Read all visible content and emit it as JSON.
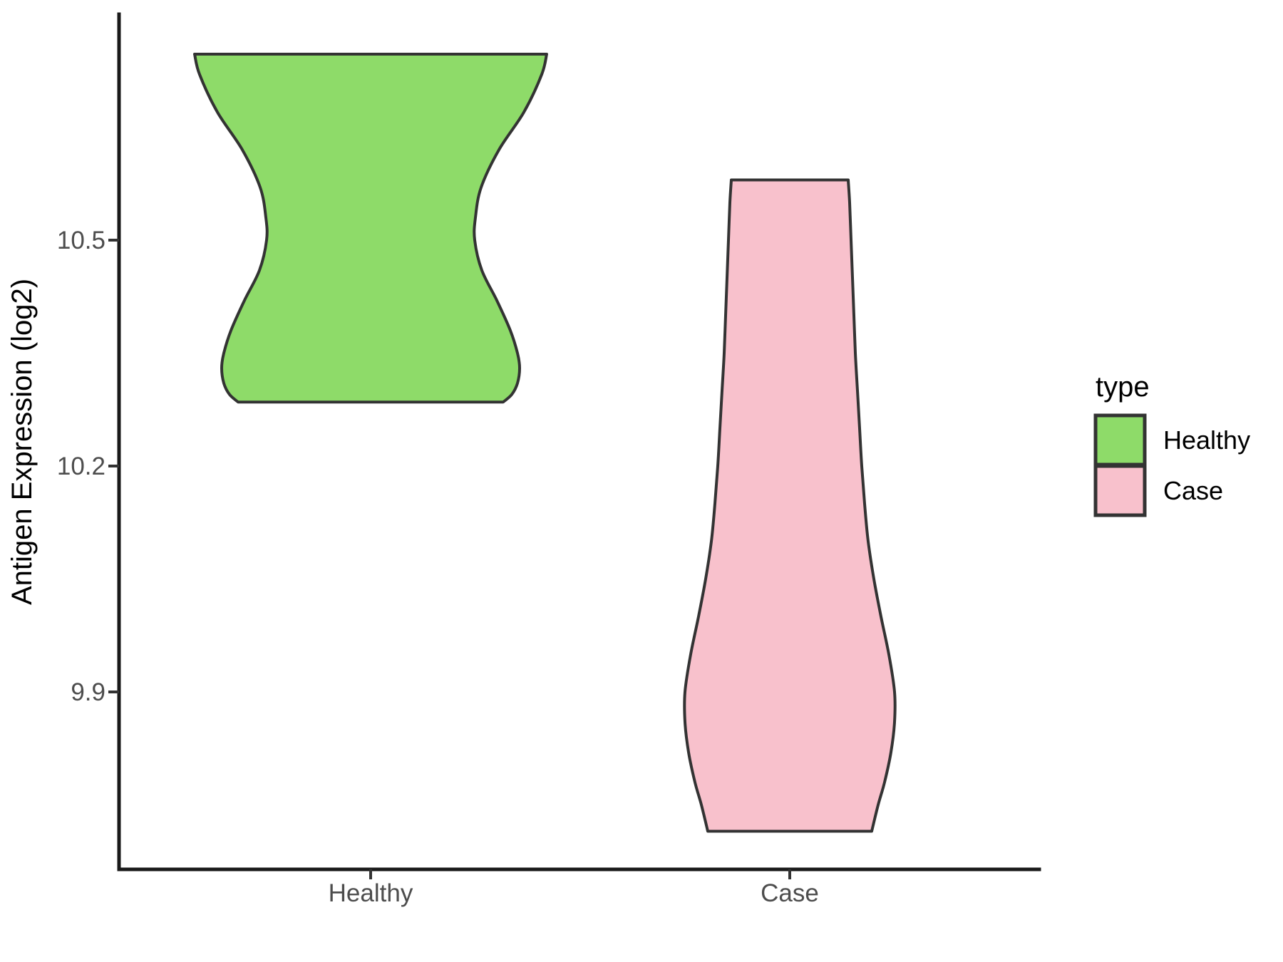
{
  "figure": {
    "background": "#ffffff"
  },
  "axes": {
    "y": {
      "title": "Antigen Expression (log2)",
      "ticks": [
        {
          "value": 10.5,
          "label": "10.5"
        },
        {
          "value": 10.2,
          "label": "10.2"
        },
        {
          "value": 9.9,
          "label": "9.9"
        }
      ],
      "label_color": "#4d4d4d",
      "line_color": "#1a1a1a"
    },
    "x": {
      "labels": [
        "Healthy",
        "Case"
      ],
      "label_color": "#4d4d4d"
    }
  },
  "legend": {
    "title": "type",
    "entries": [
      {
        "label": "Healthy",
        "color": "#8edb69"
      },
      {
        "label": "Case",
        "color": "#f8c1cc"
      }
    ],
    "border_color": "#333333",
    "position": "right"
  },
  "chart_data": {
    "type": "violin",
    "title": "",
    "xlabel": "",
    "ylabel": "Antigen Expression (log2)",
    "categories": [
      "Healthy",
      "Case"
    ],
    "y_ticks": [
      9.9,
      10.2,
      10.5
    ],
    "ylim": [
      9.66,
      10.8
    ],
    "grid": false,
    "legend_position": "right",
    "violins": [
      {
        "name": "Healthy",
        "fill": "#8edb69",
        "outline": "#333333",
        "value_range": [
          10.285,
          10.747
        ],
        "widest_at": 10.747,
        "waist_at": 10.5,
        "profile": [
          [
            10.747,
            247
          ],
          [
            10.72,
            240
          ],
          [
            10.67,
            215
          ],
          [
            10.62,
            180
          ],
          [
            10.57,
            155
          ],
          [
            10.53,
            147
          ],
          [
            10.5,
            146
          ],
          [
            10.46,
            156
          ],
          [
            10.42,
            177
          ],
          [
            10.38,
            196
          ],
          [
            10.35,
            206
          ],
          [
            10.33,
            209
          ],
          [
            10.31,
            206
          ],
          [
            10.295,
            198
          ],
          [
            10.285,
            186
          ]
        ]
      },
      {
        "name": "Case",
        "fill": "#f8c1cc",
        "outline": "#333333",
        "value_range": [
          9.715,
          10.58
        ],
        "widest_at": 9.9,
        "profile": [
          [
            10.58,
            82
          ],
          [
            10.55,
            84
          ],
          [
            10.5,
            86
          ],
          [
            10.45,
            88
          ],
          [
            10.4,
            90
          ],
          [
            10.35,
            92
          ],
          [
            10.3,
            95
          ],
          [
            10.25,
            98
          ],
          [
            10.2,
            101
          ],
          [
            10.15,
            105
          ],
          [
            10.1,
            110
          ],
          [
            10.05,
            118
          ],
          [
            10.0,
            128
          ],
          [
            9.95,
            139
          ],
          [
            9.9,
            147
          ],
          [
            9.86,
            147
          ],
          [
            9.82,
            142
          ],
          [
            9.78,
            133
          ],
          [
            9.75,
            124
          ],
          [
            9.715,
            115
          ]
        ]
      }
    ],
    "profile_units": "half_width_px"
  }
}
